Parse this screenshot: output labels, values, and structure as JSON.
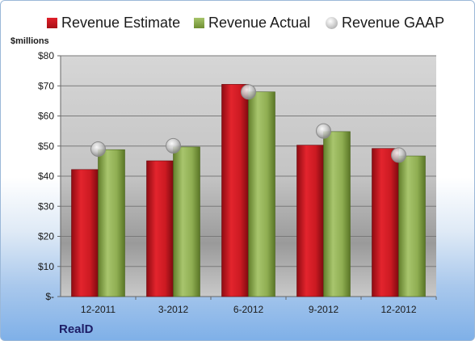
{
  "chart_data": {
    "type": "bar",
    "categories": [
      "12-2011",
      "3-2012",
      "6-2012",
      "9-2012",
      "12-2012"
    ],
    "series": [
      {
        "name": "Revenue Estimate",
        "values": [
          42.2,
          45.1,
          70.5,
          50.3,
          49.2
        ],
        "color": "#c8161f"
      },
      {
        "name": "Revenue Actual",
        "values": [
          48.8,
          49.7,
          68.0,
          54.8,
          46.7
        ],
        "color": "#8dab4f"
      },
      {
        "name": "Revenue GAAP",
        "values": [
          49.0,
          50.1,
          68.0,
          55.0,
          47.0
        ],
        "color": "#c0c0c0",
        "marker": "circle"
      }
    ],
    "ylabel": "$millions",
    "ylim": [
      0,
      80
    ],
    "yticks": [
      0,
      10,
      20,
      30,
      40,
      50,
      60,
      70,
      80
    ],
    "ytick_labels": [
      "$-",
      "$10",
      "$20",
      "$30",
      "$40",
      "$50",
      "$60",
      "$70",
      "$80"
    ],
    "grid": true,
    "legend_position": "top"
  },
  "legend": {
    "estimate": "Revenue Estimate",
    "actual": "Revenue Actual",
    "gaap": "Revenue GAAP"
  },
  "unit_label": "$millions",
  "company": "RealD"
}
